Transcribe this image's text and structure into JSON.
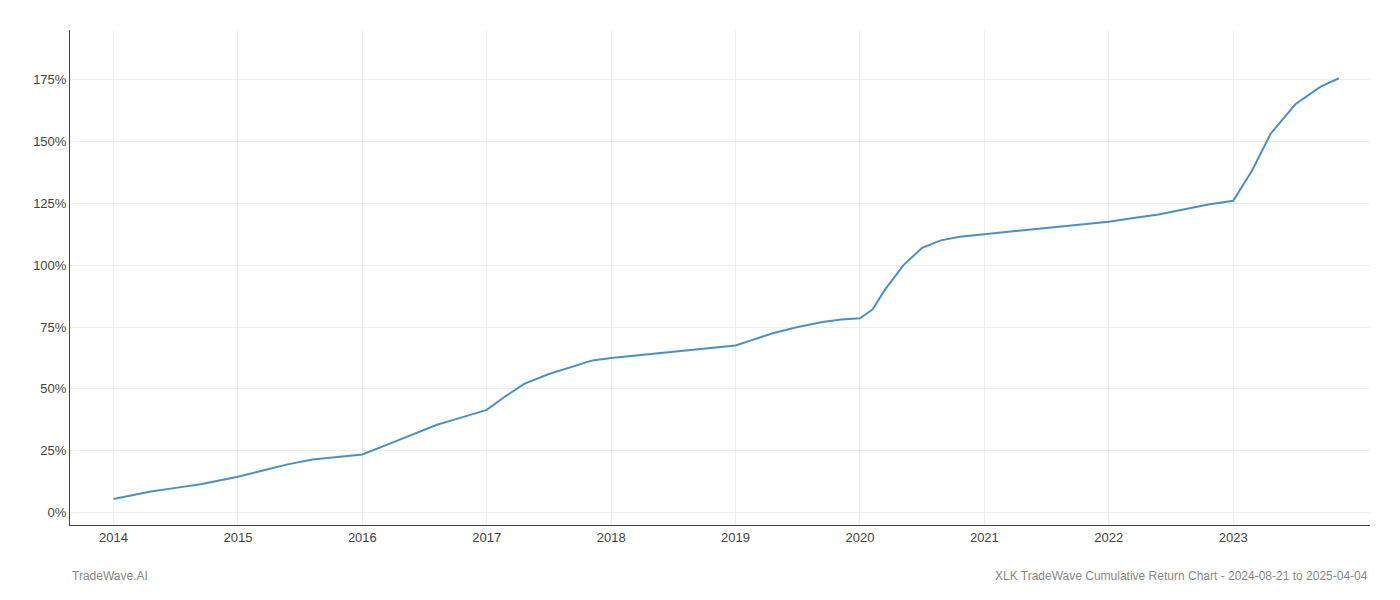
{
  "chart_data": {
    "type": "line",
    "x": [
      2014.0,
      2014.15,
      2014.3,
      2014.5,
      2014.7,
      2014.85,
      2015.0,
      2015.2,
      2015.4,
      2015.6,
      2015.8,
      2016.0,
      2016.2,
      2016.4,
      2016.6,
      2016.8,
      2017.0,
      2017.15,
      2017.3,
      2017.5,
      2017.7,
      2017.85,
      2018.0,
      2018.2,
      2018.4,
      2018.6,
      2018.8,
      2019.0,
      2019.15,
      2019.3,
      2019.5,
      2019.7,
      2019.85,
      2020.0,
      2020.1,
      2020.2,
      2020.35,
      2020.5,
      2020.65,
      2020.8,
      2021.0,
      2021.2,
      2021.4,
      2021.6,
      2021.8,
      2022.0,
      2022.2,
      2022.4,
      2022.6,
      2022.8,
      2023.0,
      2023.15,
      2023.3,
      2023.5,
      2023.7,
      2023.85
    ],
    "values": [
      5.5,
      7.0,
      8.5,
      10.0,
      11.5,
      13.0,
      14.5,
      17.0,
      19.5,
      21.5,
      22.5,
      23.5,
      27.5,
      31.5,
      35.5,
      38.5,
      41.5,
      47.0,
      52.0,
      56.0,
      59.0,
      61.5,
      62.5,
      63.5,
      64.5,
      65.5,
      66.5,
      67.5,
      70.0,
      72.5,
      75.0,
      77.0,
      78.0,
      78.5,
      82.0,
      90.0,
      100.0,
      107.0,
      110.0,
      111.5,
      112.5,
      113.5,
      114.5,
      115.5,
      116.5,
      117.5,
      119.0,
      120.5,
      122.5,
      124.5,
      126.0,
      138.0,
      153.0,
      165.0,
      172.0,
      175.5
    ],
    "color": "#4a90c4",
    "xlim": [
      2013.65,
      2024.1
    ],
    "xticks": [
      2014,
      2015,
      2016,
      2017,
      2018,
      2019,
      2020,
      2021,
      2022,
      2023
    ],
    "ylim": [
      -5,
      195
    ],
    "yticks": [
      {
        "value": 0,
        "label": "0%"
      },
      {
        "value": 25,
        "label": "25%"
      },
      {
        "value": 50,
        "label": "50%"
      },
      {
        "value": 75,
        "label": "75%"
      },
      {
        "value": 100,
        "label": "100%"
      },
      {
        "value": 125,
        "label": "125%"
      },
      {
        "value": 150,
        "label": "150%"
      },
      {
        "value": 175,
        "label": "175%"
      }
    ],
    "grid": true,
    "annotations": [
      "TradeWave.AI",
      "XLK TradeWave Cumulative Return Chart - 2024-08-21 to 2025-04-04"
    ]
  }
}
